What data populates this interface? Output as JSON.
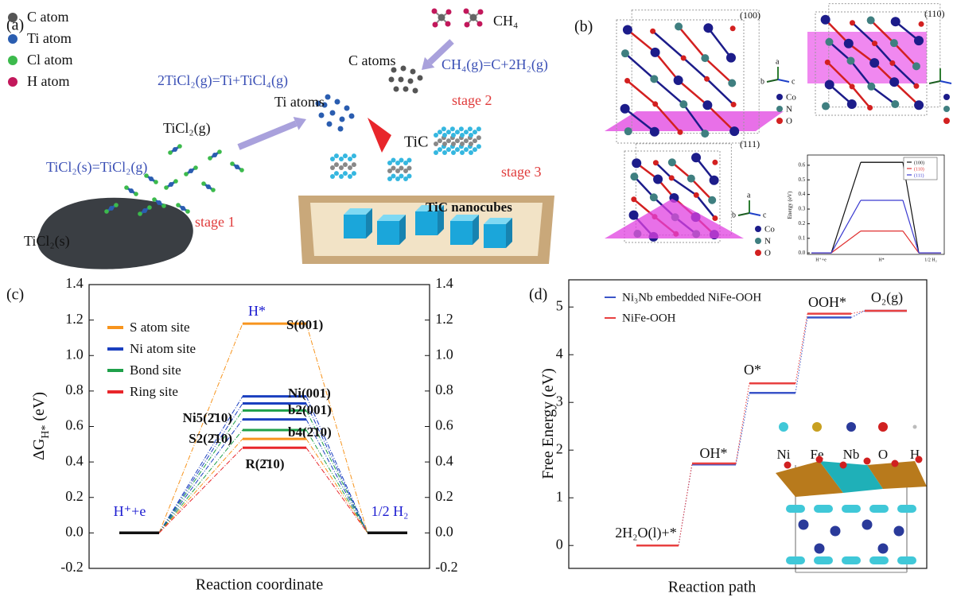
{
  "panel_a": {
    "label": "(a)",
    "legend": [
      "C atom",
      "Ti atom",
      "Cl atom",
      "H atom"
    ],
    "equations": [
      "2TiCl₂(g)=Ti+TiCl₄(g)",
      "CH₄(g)=C+2H₂(g)",
      "TiCl₂(s)=TiCl₂(g)"
    ],
    "species": [
      "Ti atoms",
      "C atoms",
      "CH₄",
      "TiCl₂(g)",
      "TiCl₂(s)",
      "TiC"
    ],
    "stages": [
      "stage 1",
      "stage 2",
      "stage 3"
    ],
    "box_label": "TiC nanocubes"
  },
  "panel_b": {
    "label": "(b)",
    "planes": [
      "(100)",
      "(110)",
      "(111)"
    ],
    "legends": [
      [
        "Co",
        "N",
        "O"
      ],
      [
        "Co",
        "N",
        "O"
      ]
    ],
    "axes": [
      [
        "a",
        "b",
        "c"
      ],
      [
        "a",
        "b",
        "c"
      ]
    ]
  },
  "chart_data": [
    {
      "type": "energy-level",
      "panel_label": "(c)",
      "xlabel": "Reaction coordinate",
      "ylabel": [
        "ΔG",
        "H*",
        " (eV)"
      ],
      "categories": [
        "H⁺+e",
        "H*",
        "1/2 H₂"
      ],
      "legend": [
        {
          "name": "S atom site",
          "color": "#f7941d"
        },
        {
          "name": "Ni atom site",
          "color": "#1a3fbf"
        },
        {
          "name": "Bond site",
          "color": "#1fa04a"
        },
        {
          "name": "Ring site",
          "color": "#e8262b"
        }
      ],
      "series": [
        {
          "name": "S(001)",
          "color": "#f7941d",
          "values": [
            0,
            1.18,
            0
          ]
        },
        {
          "name": "Ni(001)",
          "color": "#1a3fbf",
          "values": [
            0,
            0.77,
            0
          ]
        },
        {
          "name": null,
          "color": "#1a3fbf",
          "values": [
            0,
            0.73,
            0
          ]
        },
        {
          "name": "b2(001)",
          "color": "#1fa04a",
          "values": [
            0,
            0.69,
            0
          ]
        },
        {
          "name": "Ni5(2̄10)",
          "color": "#1a3fbf",
          "values": [
            0,
            0.64,
            0
          ]
        },
        {
          "name": "b4(2̄10)",
          "color": "#1fa04a",
          "values": [
            0,
            0.58,
            0
          ]
        },
        {
          "name": "S2(2̄10)",
          "color": "#f7941d",
          "values": [
            0,
            0.53,
            0
          ]
        },
        {
          "name": "R(2̄10)",
          "color": "#e8262b",
          "values": [
            0,
            0.48,
            0
          ]
        }
      ],
      "end_level_color": "#111111",
      "connector": "dashdot",
      "ylim": [
        -0.2,
        1.4
      ],
      "yticks": [
        -0.2,
        {
          "value": 0,
          "label": "0.0"
        },
        0.2,
        0.4,
        0.6,
        0.8,
        {
          "value": 1,
          "label": "1.0"
        },
        1.2,
        1.4
      ],
      "y2lim": [
        -0.2,
        1.4
      ],
      "y2ticks": [
        -0.2,
        {
          "value": 0,
          "label": "0.0"
        },
        0.2,
        0.4,
        0.6,
        0.8,
        {
          "value": 1,
          "label": "1.0"
        },
        1.2,
        1.4
      ]
    },
    {
      "type": "energy-level",
      "panel_label": "(d)",
      "xlabel": "Reaction path",
      "ylabel": [
        "Free Energy (eV)"
      ],
      "categories": [
        "2H₂O(l)+*",
        "OH*",
        "O*",
        "OOH*",
        "O₂(g)"
      ],
      "series": [
        {
          "name": "Ni₃Nb embedded NiFe-OOH",
          "color": "#3b55c8",
          "values": [
            0,
            1.7,
            3.2,
            4.78,
            4.92
          ]
        },
        {
          "name": "NiFe-OOH",
          "color": "#e84040",
          "values": [
            0,
            1.72,
            3.4,
            4.86,
            4.92
          ]
        }
      ],
      "connector": "dotted",
      "ylim": [
        -0.48,
        5.57
      ],
      "yticks": [
        0,
        1,
        2,
        3,
        4,
        5
      ],
      "inset_legend": [
        "Ni",
        "Fe",
        "Nb",
        "O",
        "H"
      ]
    },
    {
      "type": "energy-level",
      "ylabel": [
        "Energy (eV)"
      ],
      "categories": [
        "H⁺+e",
        "H*",
        "1/2 H₂"
      ],
      "series": [
        {
          "name": "(100)",
          "color": "#111111",
          "values": [
            0,
            0.62,
            0
          ]
        },
        {
          "name": "(110)",
          "color": "#e03030",
          "values": [
            0,
            0.15,
            0
          ]
        },
        {
          "name": "(111)",
          "color": "#3a3ad0",
          "values": [
            0,
            0.36,
            0
          ]
        }
      ],
      "connector": "solid",
      "ylim": [
        -0.01,
        0.67
      ],
      "yticks": [
        {
          "value": 0,
          "label": "0.0"
        },
        0.1,
        0.2,
        0.3,
        0.4,
        0.5,
        0.6
      ]
    }
  ]
}
